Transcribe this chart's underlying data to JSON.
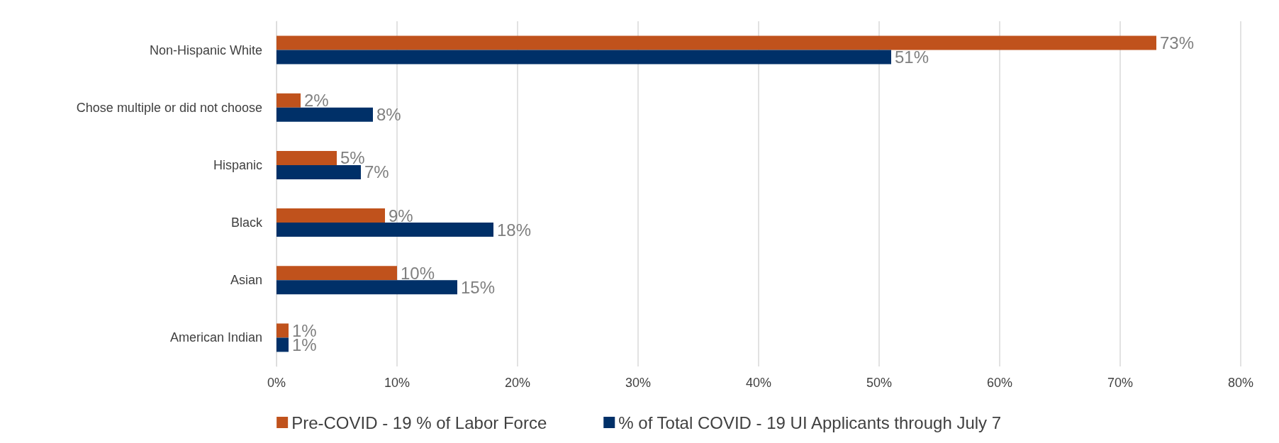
{
  "chart_data": {
    "type": "bar",
    "orientation": "horizontal",
    "categories": [
      "Non-Hispanic White",
      "Chose multiple or did not choose",
      "Hispanic",
      "Black",
      "Asian",
      "American Indian"
    ],
    "series": [
      {
        "name": "Pre-COVID - 19 % of Labor Force",
        "color": "#c0521c",
        "values": [
          73,
          2,
          5,
          9,
          10,
          1
        ],
        "value_labels": [
          "73%",
          "2%",
          "5%",
          "9%",
          "10%",
          "1%"
        ]
      },
      {
        "name": "% of Total COVID - 19 UI Applicants through July 7",
        "color": "#003068",
        "values": [
          51,
          8,
          7,
          18,
          15,
          1
        ],
        "value_labels": [
          "51%",
          "8%",
          "7%",
          "18%",
          "15%",
          "1%"
        ]
      }
    ],
    "xlim": [
      0,
      80
    ],
    "xticks": [
      {
        "value": 0,
        "label": "0%"
      },
      {
        "value": 10,
        "label": "10%"
      },
      {
        "value": 20,
        "label": "20%"
      },
      {
        "value": 30,
        "label": "30%"
      },
      {
        "value": 40,
        "label": "40%"
      },
      {
        "value": 50,
        "label": "50%"
      },
      {
        "value": 60,
        "label": "60%"
      },
      {
        "value": 70,
        "label": "70%"
      },
      {
        "value": 80,
        "label": "80%"
      }
    ],
    "grid": "x",
    "legend": "bottom"
  }
}
